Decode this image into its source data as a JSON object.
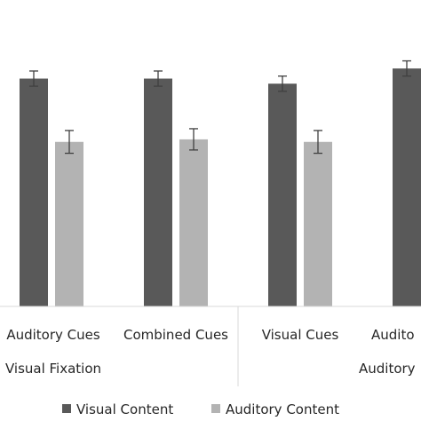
{
  "chart_data": {
    "type": "bar",
    "title": "",
    "xlabel": "",
    "ylabel": "",
    "ylim": [
      0,
      1
    ],
    "grid": false,
    "legend_position": "bottom",
    "categories": [
      "Auditory Cues",
      "Combined Cues",
      "Visual Cues",
      "Audito"
    ],
    "groups": [
      {
        "label": "Visual Fixation",
        "categories": [
          "Auditory Cues",
          "Combined Cues"
        ]
      },
      {
        "label": "Auditory",
        "categories": [
          "Visual Cues",
          "Audito"
        ]
      }
    ],
    "series": [
      {
        "name": "Visual Content",
        "color": "#595959",
        "values": [
          0.9,
          0.9,
          0.88,
          0.94
        ],
        "errors": [
          0.03,
          0.03,
          0.03,
          0.03
        ]
      },
      {
        "name": "Auditory Content",
        "color": "#b3b3b3",
        "values": [
          0.65,
          0.66,
          0.65,
          null
        ],
        "errors": [
          0.045,
          0.042,
          0.045,
          null
        ]
      }
    ]
  }
}
